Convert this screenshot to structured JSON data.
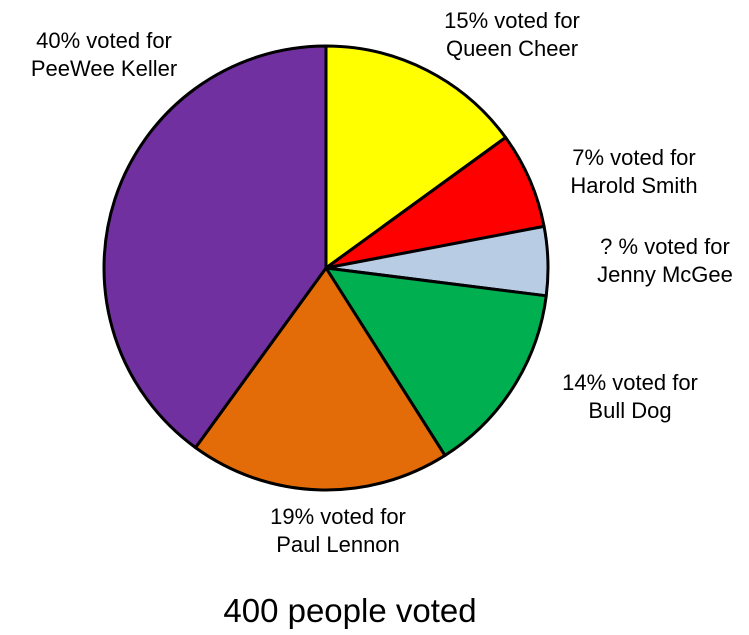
{
  "chart_data": {
    "type": "pie",
    "title": "",
    "footer": "400 people voted",
    "total_voters": 400,
    "start": "top",
    "direction": "clockwise",
    "slices": [
      {
        "name": "Queen Cheer",
        "value": 15,
        "label_lines": [
          "15% voted for",
          "Queen Cheer"
        ],
        "color": "#ffff00"
      },
      {
        "name": "Harold Smith",
        "value": 7,
        "label_lines": [
          "7% voted for",
          "Harold Smith"
        ],
        "color": "#ff0000"
      },
      {
        "name": "Jenny McGee",
        "value": 5,
        "label_lines": [
          "? % voted for",
          "Jenny McGee"
        ],
        "color": "#b8cce4"
      },
      {
        "name": "Bull Dog",
        "value": 14,
        "label_lines": [
          "14% voted for",
          "Bull Dog"
        ],
        "color": "#00b050"
      },
      {
        "name": "Paul Lennon",
        "value": 19,
        "label_lines": [
          "19% voted for",
          "Paul Lennon"
        ],
        "color": "#e36c09"
      },
      {
        "name": "PeeWee Keller",
        "value": 40,
        "label_lines": [
          "40% voted for",
          "PeeWee Keller"
        ],
        "color": "#7030a0"
      }
    ]
  }
}
